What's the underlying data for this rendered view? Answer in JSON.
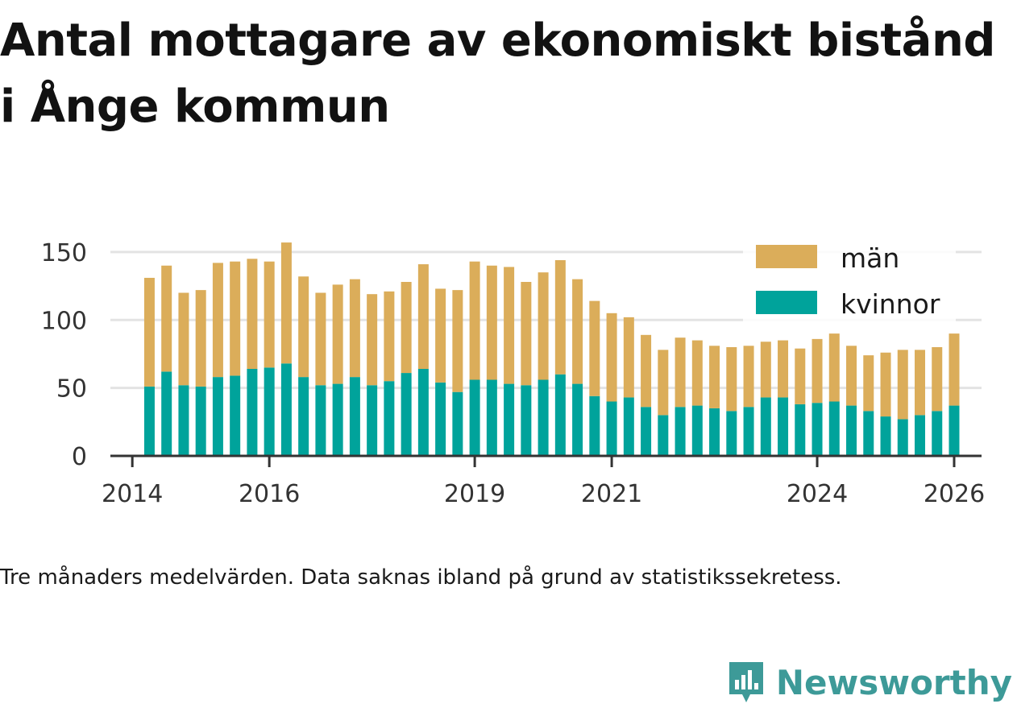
{
  "title": "Antal mottagare av ekonomiskt bistånd i Ånge kommun",
  "footnote": "Tre månaders medelvärden. Data saknas ibland på grund av statistikssekretess.",
  "brand": {
    "name": "Newsworthy"
  },
  "colors": {
    "man": "#dbad5a",
    "kvinnor": "#00a39b",
    "axis": "#333333",
    "grid": "#e3e3e3"
  },
  "chart_data": {
    "type": "bar",
    "stacked": true,
    "title": "Antal mottagare av ekonomiskt bistånd i Ånge kommun",
    "xlabel": "",
    "ylabel": "",
    "ylim": [
      0,
      160
    ],
    "yticks": [
      0,
      50,
      100,
      150
    ],
    "xticks": [
      {
        "label": "2014",
        "t": 2014.0
      },
      {
        "label": "2016",
        "t": 2016.0
      },
      {
        "label": "2019",
        "t": 2019.0
      },
      {
        "label": "2021",
        "t": 2021.0
      },
      {
        "label": "2024",
        "t": 2024.0
      },
      {
        "label": "2026",
        "t": 2026.0
      }
    ],
    "legend": [
      "män",
      "kvinnor"
    ],
    "legend_position": "top-right",
    "categories": [
      "2014-04",
      "2014-07",
      "2014-10",
      "2015-01",
      "2015-04",
      "2015-07",
      "2015-10",
      "2016-01",
      "2016-04",
      "2016-07",
      "2016-10",
      "2017-01",
      "2017-04",
      "2017-07",
      "2017-10",
      "2018-01",
      "2018-04",
      "2018-07",
      "2018-10",
      "2019-01",
      "2019-04",
      "2019-07",
      "2019-10",
      "2020-01",
      "2020-04",
      "2020-07",
      "2020-10",
      "2021-01",
      "2021-04",
      "2021-07",
      "2021-10",
      "2022-01",
      "2022-04",
      "2022-07",
      "2022-10",
      "2023-01",
      "2023-04",
      "2023-07",
      "2023-10",
      "2024-01",
      "2024-04",
      "2024-07",
      "2024-10",
      "2025-01",
      "2025-04",
      "2025-07",
      "2025-10",
      "2026-01"
    ],
    "t": [
      2014.25,
      2014.5,
      2014.75,
      2015.0,
      2015.25,
      2015.5,
      2015.75,
      2016.0,
      2016.25,
      2016.5,
      2016.75,
      2017.0,
      2017.25,
      2017.5,
      2017.75,
      2018.0,
      2018.25,
      2018.5,
      2018.75,
      2019.0,
      2019.25,
      2019.5,
      2019.75,
      2020.0,
      2020.25,
      2020.5,
      2020.75,
      2021.0,
      2021.25,
      2021.5,
      2021.75,
      2022.0,
      2022.25,
      2022.5,
      2022.75,
      2023.0,
      2023.25,
      2023.5,
      2023.75,
      2024.0,
      2024.25,
      2024.5,
      2024.75,
      2025.0,
      2025.25,
      2025.5,
      2025.75,
      2026.0
    ],
    "series": [
      {
        "name": "kvinnor",
        "values": [
          51,
          62,
          52,
          51,
          58,
          59,
          64,
          65,
          68,
          58,
          52,
          53,
          58,
          52,
          55,
          61,
          64,
          54,
          47,
          56,
          56,
          53,
          52,
          56,
          60,
          53,
          44,
          40,
          43,
          36,
          30,
          36,
          37,
          35,
          33,
          36,
          43,
          43,
          38,
          39,
          40,
          37,
          33,
          29,
          27,
          30,
          33,
          37
        ]
      },
      {
        "name": "män",
        "values": [
          80,
          78,
          68,
          71,
          84,
          84,
          81,
          78,
          89,
          74,
          68,
          73,
          72,
          67,
          66,
          67,
          77,
          69,
          75,
          87,
          84,
          86,
          76,
          79,
          84,
          77,
          70,
          65,
          59,
          53,
          48,
          51,
          48,
          46,
          47,
          45,
          41,
          42,
          41,
          47,
          50,
          44,
          41,
          47,
          51,
          48,
          47,
          53
        ]
      }
    ]
  }
}
